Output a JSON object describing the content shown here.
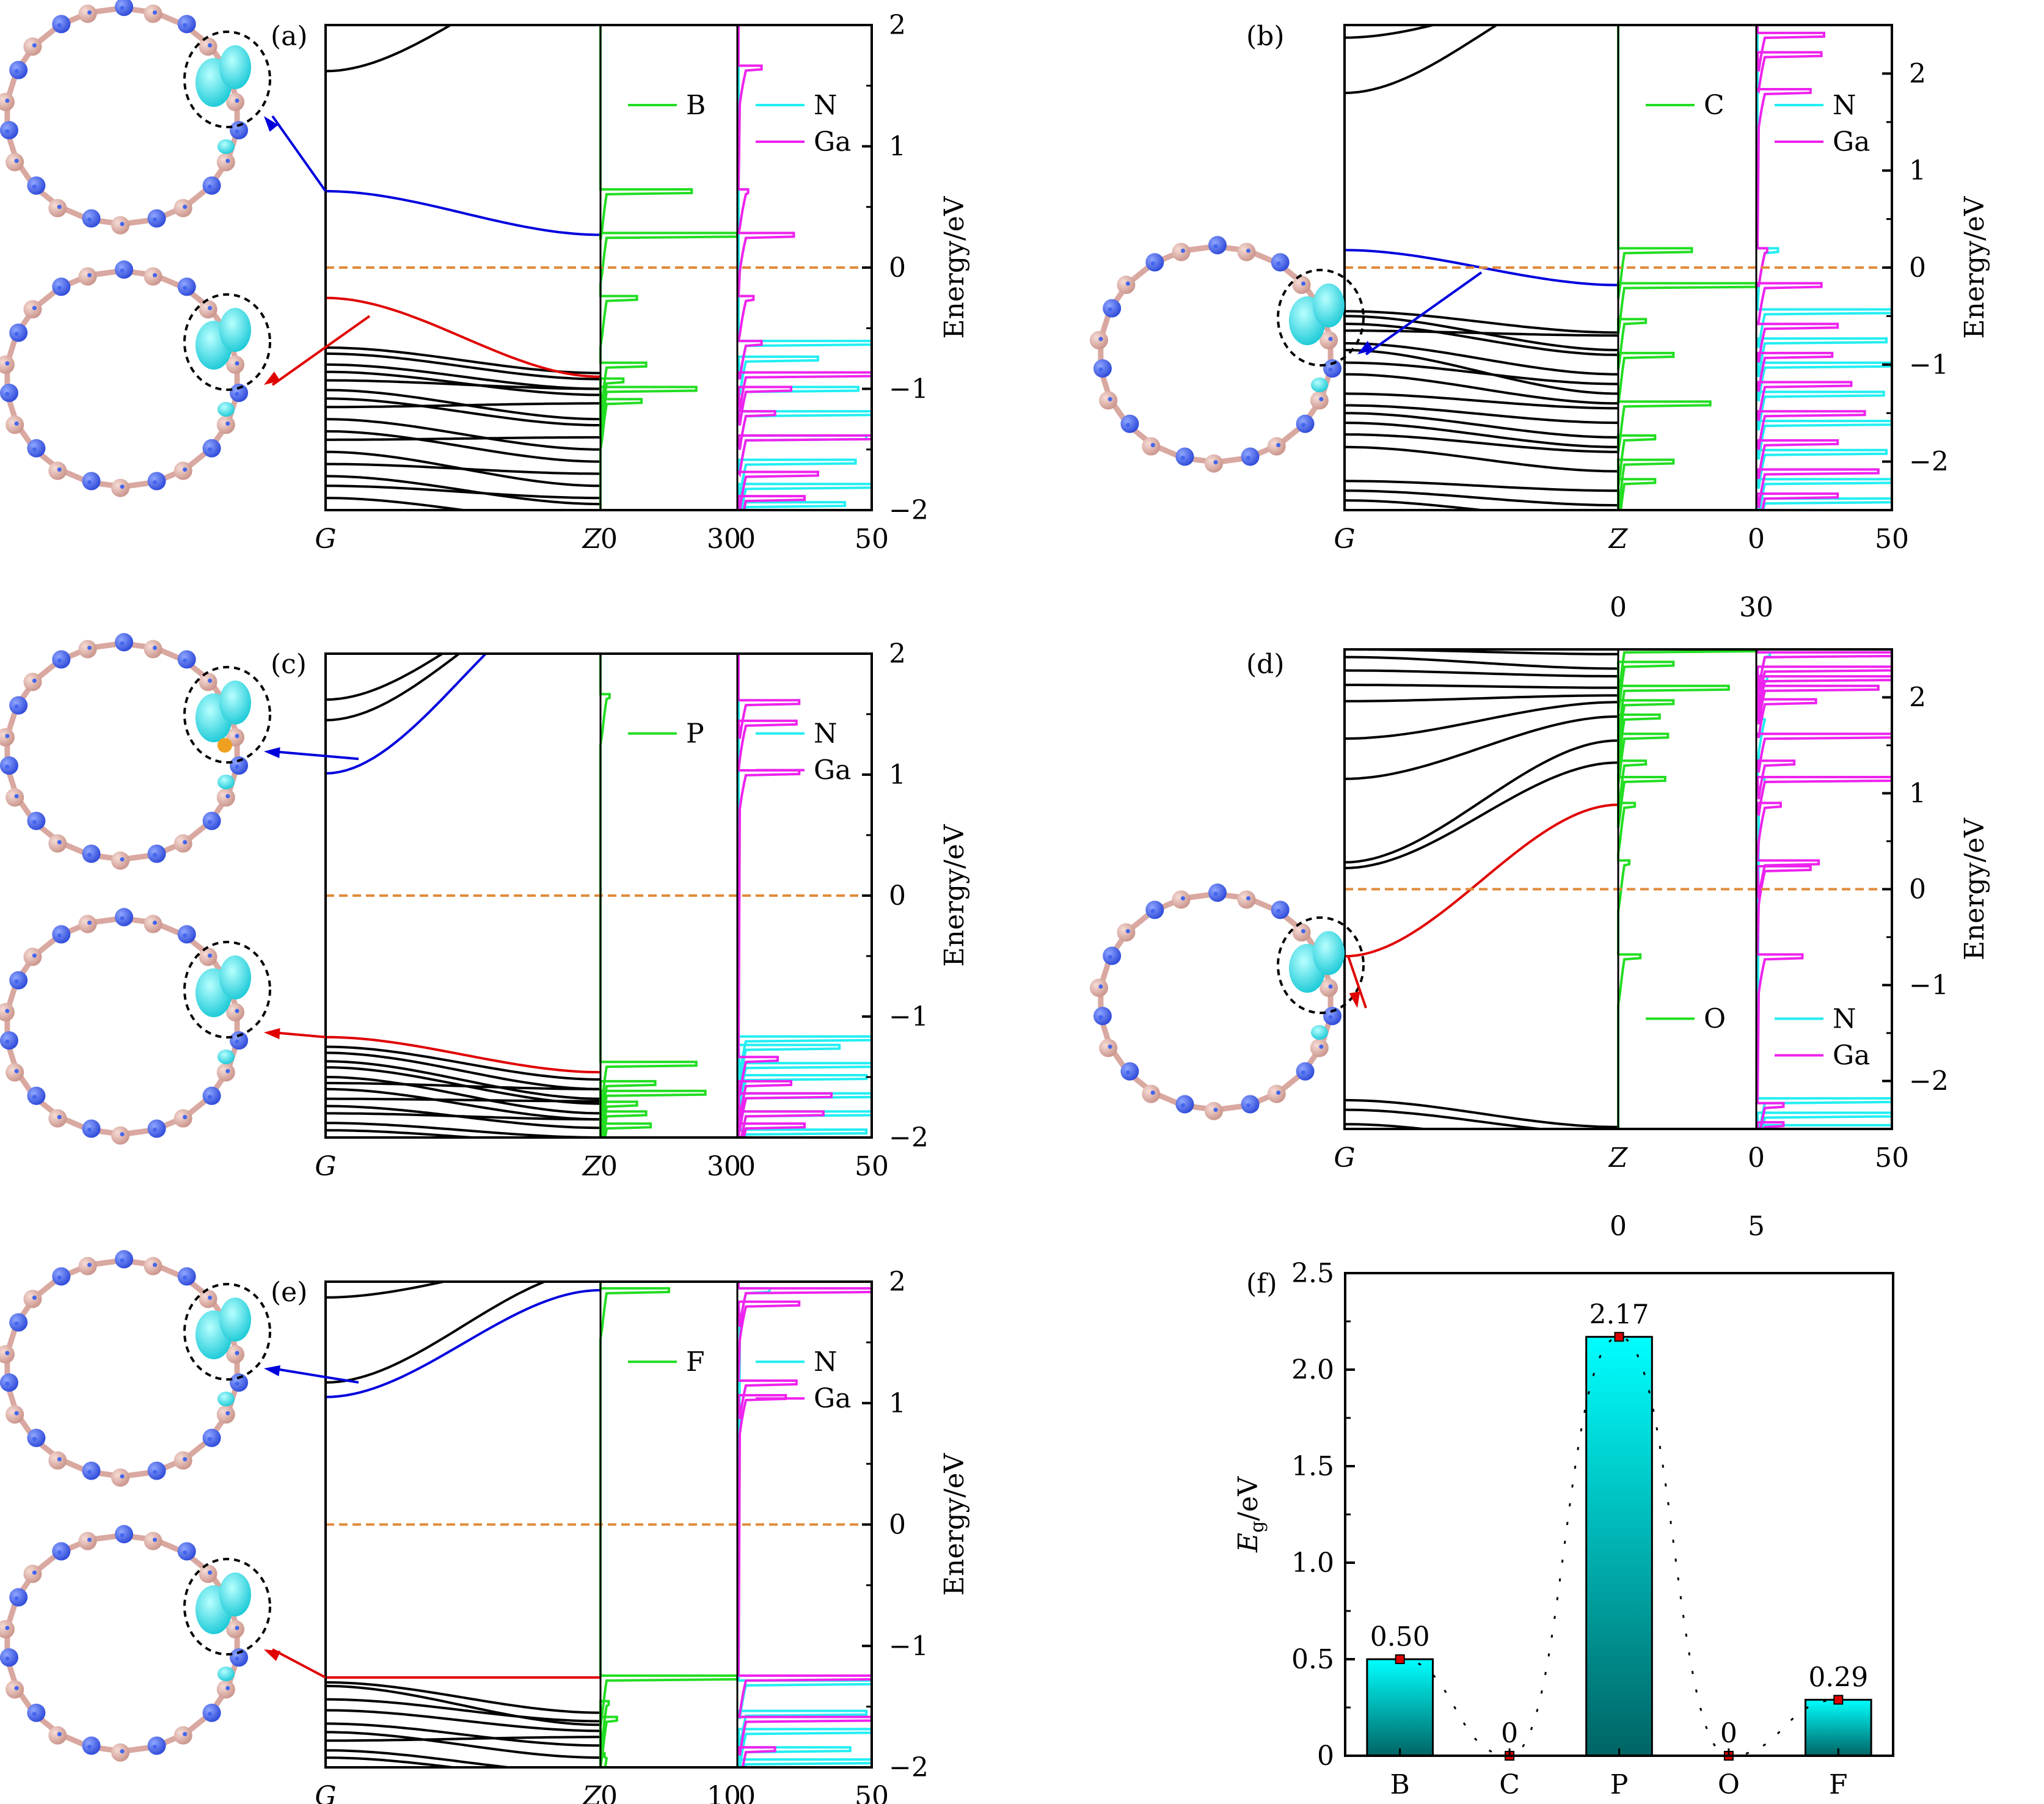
{
  "colors": {
    "band": "#000000",
    "cbm": "#0000dd",
    "vbm": "#e00000",
    "fermi": "#e08a3a",
    "dopant_dos": "#22dd22",
    "n_dos": "#22eef2",
    "ga_dos": "#ee22ee",
    "n_atom": "#3656e8",
    "ga_atom": "#dcaaa2",
    "isosurface": "#33e6ee",
    "bar_top": "#00ffff",
    "bar_bottom": "#006464",
    "marker": "#dd0000"
  },
  "common": {
    "k_labels": [
      "G",
      "Z"
    ],
    "y_axis_title": "Energy/eV",
    "legend_n": "N",
    "legend_ga": "Ga"
  },
  "chart_data": [
    {
      "id": "a",
      "type": "line",
      "label": "(a)",
      "dopant": "B",
      "ylim": [
        -2,
        2
      ],
      "yticks": [
        "2",
        "1",
        "0",
        "−1",
        "−2"
      ],
      "ytick_values": [
        2,
        1,
        0,
        -1,
        -2
      ],
      "dos1_ticks": [
        "0",
        "30"
      ],
      "dos2_ticks": [
        "0",
        "50"
      ],
      "dos1_max": 30,
      "dos2_max": 50,
      "dos_ticks_layout": "inline",
      "cbm": {
        "G": 0.63,
        "Z": 0.27
      },
      "vbm": {
        "G": -0.25,
        "Z": -0.9
      },
      "other_bands": [
        [
          1.62,
          2.5
        ],
        [
          -0.66,
          -0.87
        ],
        [
          -0.71,
          -0.92
        ],
        [
          -0.8,
          -1.0
        ],
        [
          -0.86,
          -1.05
        ],
        [
          -0.93,
          -1.0
        ],
        [
          -1.01,
          -1.25
        ],
        [
          -1.08,
          -1.3
        ],
        [
          -1.15,
          -1.12
        ],
        [
          -1.25,
          -1.5
        ],
        [
          -1.35,
          -1.6
        ],
        [
          -1.42,
          -1.4
        ],
        [
          -1.52,
          -1.8
        ],
        [
          -1.62,
          -1.7
        ],
        [
          -1.72,
          -1.95
        ],
        [
          -1.8,
          -1.9
        ],
        [
          -1.9,
          -2.1
        ]
      ],
      "dopant_dos_peaks": [
        [
          0.63,
          20
        ],
        [
          0.27,
          30
        ],
        [
          -0.25,
          8
        ],
        [
          -0.8,
          10
        ],
        [
          -0.93,
          5
        ],
        [
          -1.0,
          21
        ],
        [
          -1.1,
          9
        ]
      ],
      "n_dos_peaks": [
        [
          -0.62,
          50
        ],
        [
          -0.75,
          30
        ],
        [
          -1.0,
          45
        ],
        [
          -1.2,
          50
        ],
        [
          -1.4,
          48
        ],
        [
          -1.6,
          44
        ],
        [
          -1.8,
          50
        ],
        [
          -1.95,
          40
        ]
      ],
      "ga_dos_peaks": [
        [
          1.65,
          9
        ],
        [
          0.63,
          4
        ],
        [
          0.27,
          21
        ],
        [
          -0.25,
          6
        ],
        [
          -0.62,
          9
        ],
        [
          -0.88,
          50
        ],
        [
          -1.0,
          20
        ],
        [
          -1.2,
          14
        ],
        [
          -1.4,
          50
        ],
        [
          -1.7,
          30
        ],
        [
          -1.9,
          25
        ]
      ],
      "fermi": 0
    },
    {
      "id": "b",
      "type": "line",
      "label": "(b)",
      "dopant": "C",
      "ylim": [
        -2.5,
        2.5
      ],
      "yticks": [
        "2",
        "1",
        "0",
        "−1",
        "−2"
      ],
      "ytick_values": [
        2,
        1,
        0,
        -1,
        -2
      ],
      "dos1_ticks": [
        "0",
        "30"
      ],
      "dos2_ticks": [
        "0",
        "50"
      ],
      "dos1_max": 30,
      "dos2_max": 50,
      "dos_ticks_layout": "stacked",
      "cbm": {
        "G": 0.18,
        "Z": -0.18
      },
      "vbm": null,
      "other_bands": [
        [
          2.5,
          2.8
        ],
        [
          2.37,
          2.9
        ],
        [
          1.8,
          3.0
        ],
        [
          -0.45,
          -0.67
        ],
        [
          -0.5,
          -0.85
        ],
        [
          -0.58,
          -0.9
        ],
        [
          -0.65,
          -0.7
        ],
        [
          -0.78,
          -1.1
        ],
        [
          -0.85,
          -1.3
        ],
        [
          -0.98,
          -1.2
        ],
        [
          -1.1,
          -1.4
        ],
        [
          -1.3,
          -1.45
        ],
        [
          -1.42,
          -1.6
        ],
        [
          -1.5,
          -1.75
        ],
        [
          -1.6,
          -1.85
        ],
        [
          -1.72,
          -1.9
        ],
        [
          -1.85,
          -2.1
        ],
        [
          -2.2,
          -2.3
        ],
        [
          -2.3,
          -2.45
        ],
        [
          -2.4,
          -2.6
        ]
      ],
      "dopant_dos_peaks": [
        [
          0.18,
          16
        ],
        [
          -0.18,
          30
        ],
        [
          -0.55,
          6
        ],
        [
          -0.9,
          12
        ],
        [
          -1.4,
          20
        ],
        [
          -1.75,
          8
        ],
        [
          -2.0,
          12
        ],
        [
          -2.2,
          8
        ]
      ],
      "n_dos_peaks": [
        [
          0.18,
          8
        ],
        [
          -0.45,
          50
        ],
        [
          -0.75,
          48
        ],
        [
          -1.0,
          50
        ],
        [
          -1.3,
          47
        ],
        [
          -1.6,
          50
        ],
        [
          -1.9,
          48
        ],
        [
          -2.2,
          50
        ],
        [
          -2.4,
          50
        ]
      ],
      "ga_dos_peaks": [
        [
          2.4,
          25
        ],
        [
          2.2,
          24
        ],
        [
          1.82,
          20
        ],
        [
          0.18,
          4
        ],
        [
          -0.18,
          24
        ],
        [
          -0.6,
          30
        ],
        [
          -0.9,
          28
        ],
        [
          -1.2,
          35
        ],
        [
          -1.5,
          40
        ],
        [
          -1.8,
          30
        ],
        [
          -2.1,
          45
        ],
        [
          -2.35,
          30
        ]
      ],
      "fermi": 0
    },
    {
      "id": "c",
      "type": "line",
      "label": "(c)",
      "dopant": "P",
      "ylim": [
        -2,
        2
      ],
      "yticks": [
        "2",
        "1",
        "0",
        "−1",
        "−2"
      ],
      "ytick_values": [
        2,
        1,
        0,
        -1,
        -2
      ],
      "dos1_ticks": [
        "0",
        "30"
      ],
      "dos2_ticks": [
        "0",
        "50"
      ],
      "dos1_max": 30,
      "dos2_max": 50,
      "dos_ticks_layout": "inline",
      "cbm": {
        "G": 1.01,
        "Z": 2.6
      },
      "vbm": {
        "G": -1.17,
        "Z": -1.46
      },
      "other_bands": [
        [
          1.62,
          2.6
        ],
        [
          1.45,
          2.6
        ],
        [
          -1.25,
          -1.52
        ],
        [
          -1.3,
          -1.6
        ],
        [
          -1.37,
          -1.68
        ],
        [
          -1.42,
          -1.72
        ],
        [
          -1.5,
          -1.8
        ],
        [
          -1.55,
          -1.6
        ],
        [
          -1.6,
          -1.85
        ],
        [
          -1.68,
          -1.7
        ],
        [
          -1.74,
          -1.92
        ],
        [
          -1.8,
          -1.85
        ],
        [
          -1.88,
          -2.0
        ],
        [
          -1.94,
          -2.05
        ]
      ],
      "dopant_dos_peaks": [
        [
          1.65,
          2
        ],
        [
          -1.39,
          21
        ],
        [
          -1.55,
          12
        ],
        [
          -1.63,
          23
        ],
        [
          -1.72,
          8
        ],
        [
          -1.8,
          10
        ],
        [
          -1.9,
          11
        ]
      ],
      "n_dos_peaks": [
        [
          -1.18,
          50
        ],
        [
          -1.25,
          38
        ],
        [
          -1.4,
          50
        ],
        [
          -1.5,
          48
        ],
        [
          -1.65,
          50
        ],
        [
          -1.8,
          50
        ],
        [
          -1.95,
          48
        ]
      ],
      "ga_dos_peaks": [
        [
          1.6,
          23
        ],
        [
          1.43,
          22
        ],
        [
          1.02,
          23
        ],
        [
          -1.35,
          15
        ],
        [
          -1.55,
          20
        ],
        [
          -1.65,
          35
        ],
        [
          -1.8,
          32
        ],
        [
          -1.9,
          25
        ]
      ],
      "fermi": 0
    },
    {
      "id": "d",
      "type": "line",
      "label": "(d)",
      "dopant": "O",
      "ylim": [
        -2.5,
        2.5
      ],
      "yticks": [
        "2",
        "1",
        "0",
        "−1",
        "−2"
      ],
      "ytick_values": [
        2,
        1,
        0,
        -1,
        -2
      ],
      "dos1_ticks": [
        "0",
        "5"
      ],
      "dos2_ticks": [
        "0",
        "50"
      ],
      "dos1_max": 5,
      "dos2_max": 50,
      "dos_ticks_layout": "stacked",
      "cbm": null,
      "vbm": {
        "G": -0.7,
        "Z": 0.88
      },
      "other_bands": [
        [
          2.5,
          2.45
        ],
        [
          2.42,
          2.3
        ],
        [
          2.28,
          2.22
        ],
        [
          2.13,
          2.1
        ],
        [
          1.96,
          2.02
        ],
        [
          1.57,
          1.95
        ],
        [
          1.15,
          1.8
        ],
        [
          0.28,
          1.55
        ],
        [
          0.22,
          1.32
        ],
        [
          -2.2,
          -2.48
        ],
        [
          -2.3,
          -2.55
        ],
        [
          -2.45,
          -2.7
        ]
      ],
      "dopant_dos_peaks": [
        [
          2.5,
          5
        ],
        [
          2.35,
          2
        ],
        [
          2.1,
          4
        ],
        [
          1.95,
          2
        ],
        [
          1.8,
          1.5
        ],
        [
          1.6,
          1.8
        ],
        [
          1.32,
          1
        ],
        [
          1.15,
          1.7
        ],
        [
          0.88,
          0.6
        ],
        [
          0.28,
          0.4
        ],
        [
          -0.7,
          0.8
        ]
      ],
      "n_dos_peaks": [
        [
          2.45,
          5
        ],
        [
          2.2,
          4
        ],
        [
          1.8,
          2
        ],
        [
          1.15,
          3
        ],
        [
          -2.2,
          50
        ],
        [
          -2.35,
          50
        ],
        [
          -2.48,
          50
        ]
      ],
      "ga_dos_peaks": [
        [
          2.45,
          50
        ],
        [
          2.3,
          50
        ],
        [
          2.2,
          50
        ],
        [
          2.1,
          45
        ],
        [
          1.96,
          22
        ],
        [
          1.6,
          50
        ],
        [
          1.32,
          14
        ],
        [
          1.15,
          50
        ],
        [
          0.88,
          9
        ],
        [
          0.28,
          23
        ],
        [
          0.22,
          20
        ],
        [
          -0.7,
          17
        ],
        [
          -2.25,
          10
        ],
        [
          -2.45,
          10
        ]
      ],
      "fermi": 0
    },
    {
      "id": "e",
      "type": "line",
      "label": "(e)",
      "dopant": "F",
      "ylim": [
        -2,
        2
      ],
      "yticks": [
        "2",
        "1",
        "0",
        "−1",
        "−2"
      ],
      "ytick_values": [
        2,
        1,
        0,
        -1,
        -2
      ],
      "dos1_ticks": [
        "0",
        "10"
      ],
      "dos2_ticks": [
        "0",
        "50"
      ],
      "dos1_max": 10,
      "dos2_max": 50,
      "dos_ticks_layout": "inline",
      "cbm": {
        "G": 1.05,
        "Z": 1.93
      },
      "vbm": {
        "G": -1.26,
        "Z": -1.26
      },
      "other_bands": [
        [
          1.87,
          2.2
        ],
        [
          1.17,
          2.1
        ],
        [
          -1.3,
          -1.55
        ],
        [
          -1.33,
          -1.65
        ],
        [
          -1.44,
          -1.62
        ],
        [
          -1.53,
          -1.7
        ],
        [
          -1.64,
          -1.82
        ],
        [
          -1.71,
          -1.92
        ],
        [
          -1.78,
          -1.75
        ],
        [
          -1.86,
          -2.05
        ],
        [
          -1.92,
          -2.1
        ]
      ],
      "dopant_dos_peaks": [
        [
          1.93,
          5
        ],
        [
          -1.26,
          10
        ],
        [
          -1.47,
          0.6
        ],
        [
          -1.6,
          1.2
        ],
        [
          -1.9,
          0.3
        ]
      ],
      "n_dos_peaks": [
        [
          1.93,
          12
        ],
        [
          -1.3,
          50
        ],
        [
          -1.55,
          48
        ],
        [
          -1.7,
          50
        ],
        [
          -1.85,
          42
        ],
        [
          -1.95,
          50
        ]
      ],
      "ga_dos_peaks": [
        [
          1.93,
          50
        ],
        [
          1.82,
          23
        ],
        [
          1.17,
          22
        ],
        [
          1.05,
          18
        ],
        [
          -1.26,
          50
        ],
        [
          -1.6,
          50
        ],
        [
          -1.85,
          14
        ]
      ],
      "fermi": 0
    },
    {
      "id": "f",
      "type": "bar",
      "label": "(f)",
      "categories": [
        "B",
        "C",
        "P",
        "O",
        "F"
      ],
      "values": [
        0.5,
        0,
        2.17,
        0,
        0.29
      ],
      "value_labels": [
        "0.50",
        "0",
        "2.17",
        "0",
        "0.29"
      ],
      "ylabel_main": "E",
      "ylabel_sub": "g",
      "ylabel_unit": "/eV",
      "ylim": [
        0,
        2.5
      ],
      "yticks": [
        "0",
        "0.5",
        "1.0",
        "1.5",
        "2.0",
        "2.5"
      ],
      "ytick_values": [
        0,
        0.5,
        1.0,
        1.5,
        2.0,
        2.5
      ],
      "overlay": "dotted spline through values with square markers"
    }
  ]
}
